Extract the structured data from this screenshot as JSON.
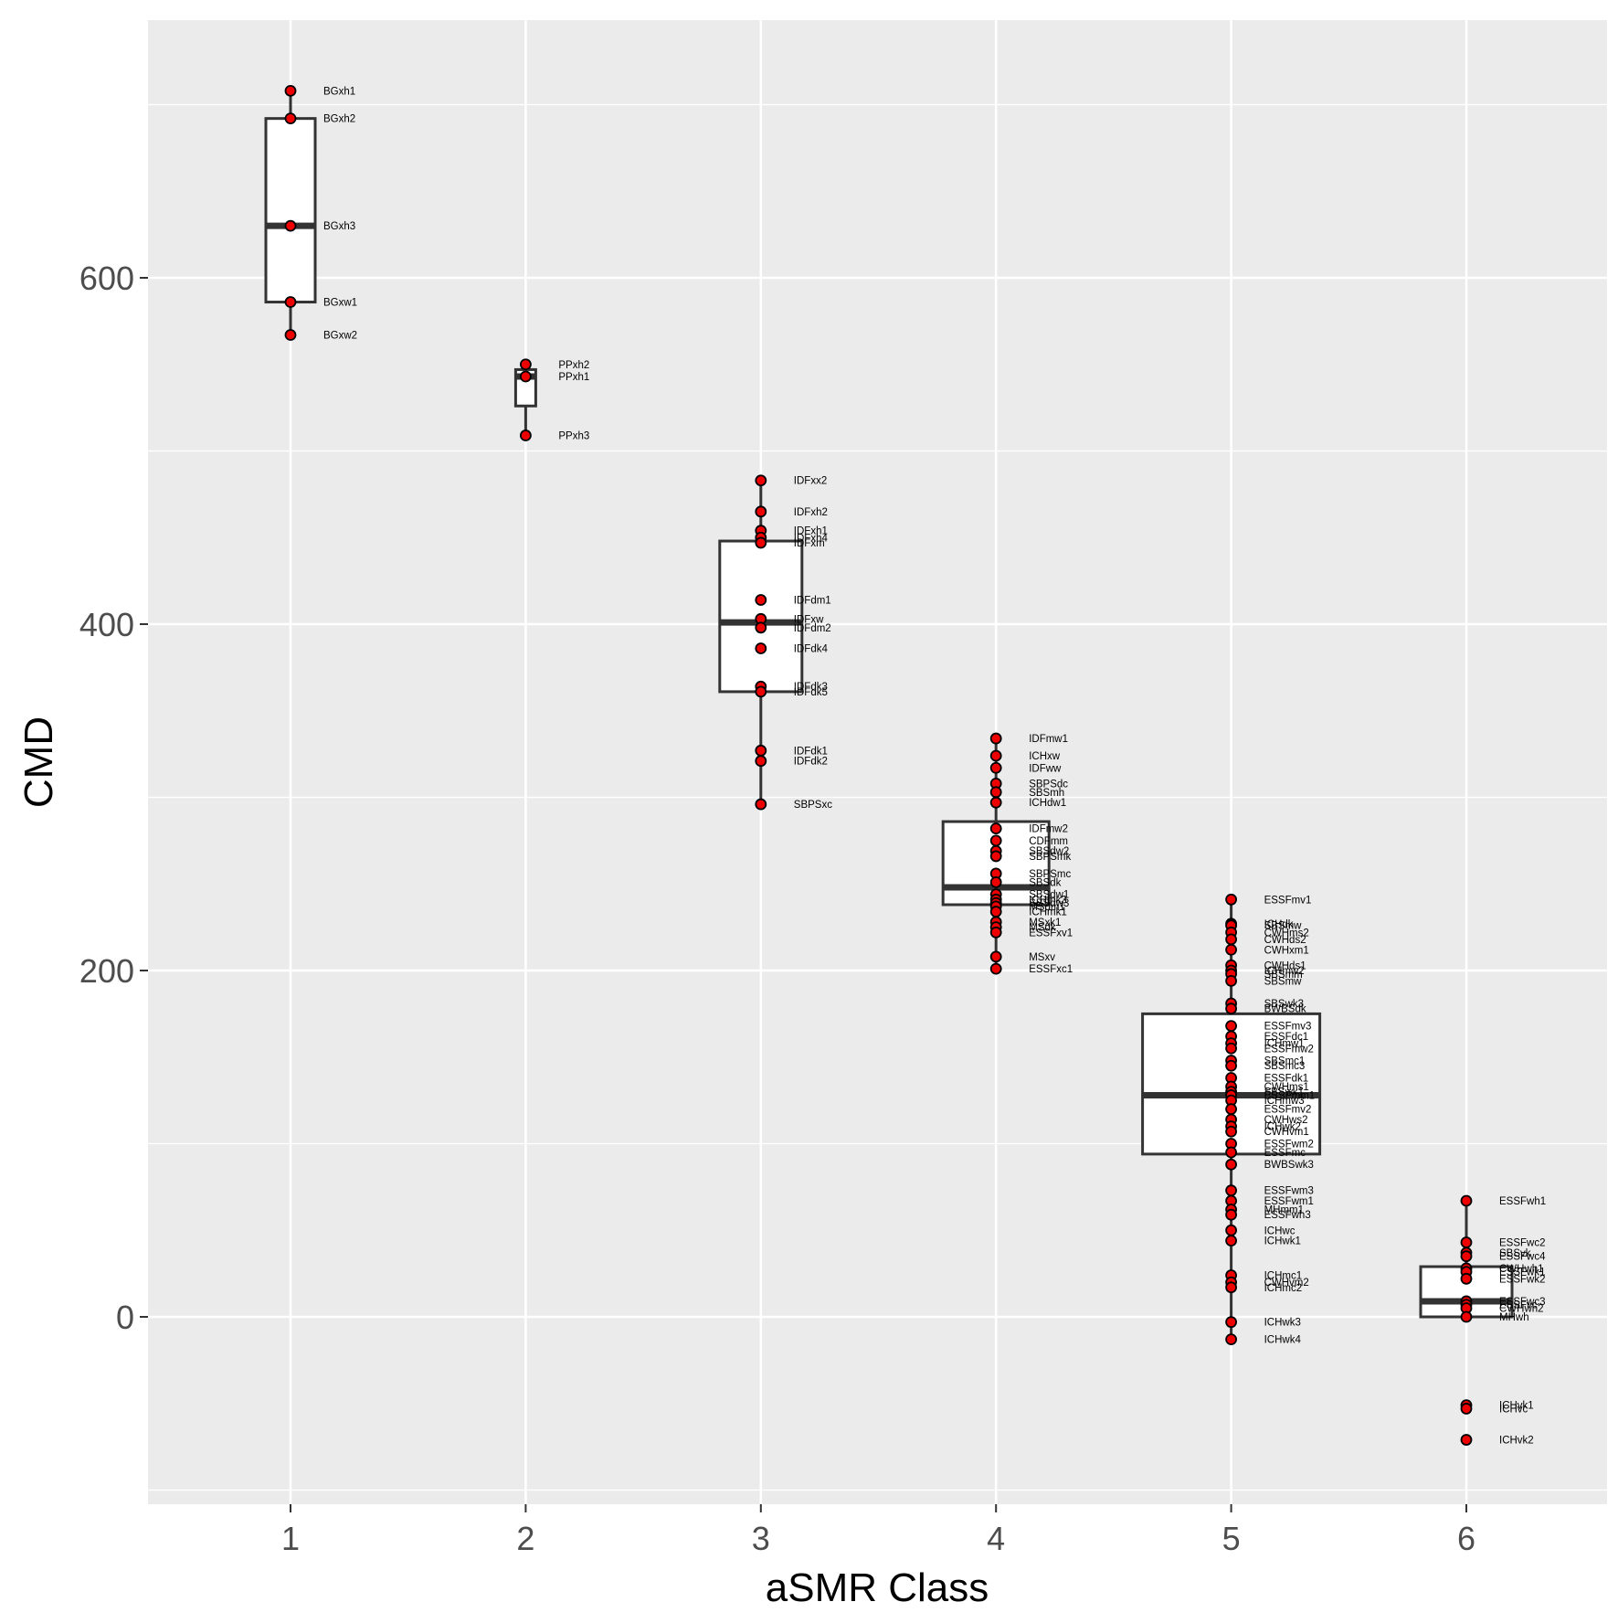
{
  "chart_data": {
    "type": "box",
    "xlabel": "aSMR Class",
    "ylabel": "CMD",
    "categories": [
      "1",
      "2",
      "3",
      "4",
      "5",
      "6"
    ],
    "yticks": [
      0,
      200,
      400,
      600
    ],
    "ylim": [
      -110,
      745
    ],
    "grid": true,
    "colors": {
      "panel_background": "#ebebeb",
      "grid": "#ffffff",
      "box_fill": "#ffffff",
      "box_line": "#333333",
      "point_fill": "#ee0000",
      "point_outline": "#000000"
    },
    "boxes": [
      {
        "class": "1",
        "whisker_low": 567,
        "q1": 586,
        "median": 630,
        "q3": 692,
        "whisker_high": 708
      },
      {
        "class": "2",
        "whisker_low": 509,
        "q1": 526,
        "median": 543,
        "q3": 547,
        "whisker_high": 550
      },
      {
        "class": "3",
        "whisker_low": 296,
        "q1": 361,
        "median": 401,
        "q3": 448,
        "whisker_high": 483
      },
      {
        "class": "4",
        "whisker_low": 201,
        "q1": 238,
        "median": 248,
        "q3": 286,
        "whisker_high": 334
      },
      {
        "class": "5",
        "whisker_low": -13,
        "q1": 94,
        "median": 128,
        "q3": 175,
        "whisker_high": 241
      },
      {
        "class": "6",
        "whisker_low": 0,
        "q1": 0,
        "median": 9,
        "q3": 29,
        "whisker_high": 67
      }
    ],
    "points": [
      {
        "class": "1",
        "label": "BGxh1",
        "value": 708
      },
      {
        "class": "1",
        "label": "BGxh2",
        "value": 692
      },
      {
        "class": "1",
        "label": "BGxh3",
        "value": 630
      },
      {
        "class": "1",
        "label": "BGxw1",
        "value": 586
      },
      {
        "class": "1",
        "label": "BGxw2",
        "value": 567
      },
      {
        "class": "2",
        "label": "PPxh2",
        "value": 550
      },
      {
        "class": "2",
        "label": "PPxh1",
        "value": 543
      },
      {
        "class": "2",
        "label": "PPxh3",
        "value": 509
      },
      {
        "class": "3",
        "label": "IDFxx2",
        "value": 483
      },
      {
        "class": "3",
        "label": "IDFxh2",
        "value": 465
      },
      {
        "class": "3",
        "label": "IDFxh1",
        "value": 454
      },
      {
        "class": "3",
        "label": "IDFxh4",
        "value": 450
      },
      {
        "class": "3",
        "label": "IDFxm",
        "value": 447
      },
      {
        "class": "3",
        "label": "IDFdm1",
        "value": 414
      },
      {
        "class": "3",
        "label": "IDFxw",
        "value": 403
      },
      {
        "class": "3",
        "label": "IDFdm2",
        "value": 398
      },
      {
        "class": "3",
        "label": "IDFdk4",
        "value": 386
      },
      {
        "class": "3",
        "label": "IDFdk3",
        "value": 364
      },
      {
        "class": "3",
        "label": "IDFdk5",
        "value": 361
      },
      {
        "class": "3",
        "label": "IDFdk1",
        "value": 327
      },
      {
        "class": "3",
        "label": "IDFdk2",
        "value": 321
      },
      {
        "class": "3",
        "label": "SBPSxc",
        "value": 296
      },
      {
        "class": "4",
        "label": "IDFmw1",
        "value": 334
      },
      {
        "class": "4",
        "label": "ICHxw",
        "value": 324
      },
      {
        "class": "4",
        "label": "IDFww",
        "value": 317
      },
      {
        "class": "4",
        "label": "SBPSdc",
        "value": 308
      },
      {
        "class": "4",
        "label": "SBSmh",
        "value": 303
      },
      {
        "class": "4",
        "label": "ICHdw1",
        "value": 297
      },
      {
        "class": "4",
        "label": "IDFmw2",
        "value": 282
      },
      {
        "class": "4",
        "label": "CDFmm",
        "value": 275
      },
      {
        "class": "4",
        "label": "SBSdw2",
        "value": 269
      },
      {
        "class": "4",
        "label": "SBPSmk",
        "value": 266
      },
      {
        "class": "4",
        "label": "SBPSmc",
        "value": 256
      },
      {
        "class": "4",
        "label": "SBSdk",
        "value": 251
      },
      {
        "class": "4",
        "label": "SBSdw1",
        "value": 244
      },
      {
        "class": "4",
        "label": "ICHmk3",
        "value": 241
      },
      {
        "class": "4",
        "label": "SBSdw3",
        "value": 239
      },
      {
        "class": "4",
        "label": "MSdm1",
        "value": 237
      },
      {
        "class": "4",
        "label": "ICHmk1",
        "value": 234
      },
      {
        "class": "4",
        "label": "MSxk1",
        "value": 228
      },
      {
        "class": "4",
        "label": "MSdk",
        "value": 225
      },
      {
        "class": "4",
        "label": "ESSFxv1",
        "value": 222
      },
      {
        "class": "4",
        "label": "MSxv",
        "value": 208
      },
      {
        "class": "4",
        "label": "ESSFxc1",
        "value": 201
      },
      {
        "class": "5",
        "label": "ESSFmv1",
        "value": 241
      },
      {
        "class": "5",
        "label": "ICHdk",
        "value": 227
      },
      {
        "class": "5",
        "label": "SBSmw",
        "value": 226
      },
      {
        "class": "5",
        "label": "CWHms2",
        "value": 222
      },
      {
        "class": "5",
        "label": "CWHds2",
        "value": 218
      },
      {
        "class": "5",
        "label": "CWHxm1",
        "value": 212
      },
      {
        "class": "5",
        "label": "CWHds1",
        "value": 203
      },
      {
        "class": "5",
        "label": "ICHmw2",
        "value": 200
      },
      {
        "class": "5",
        "label": "SBSmm",
        "value": 198
      },
      {
        "class": "5",
        "label": "SBSmw",
        "value": 194
      },
      {
        "class": "5",
        "label": "SBSwk3",
        "value": 181
      },
      {
        "class": "5",
        "label": "BWBSdk",
        "value": 178
      },
      {
        "class": "5",
        "label": "ESSFmv3",
        "value": 168
      },
      {
        "class": "5",
        "label": "ESSFdc1",
        "value": 162
      },
      {
        "class": "5",
        "label": "ICHmw1",
        "value": 158
      },
      {
        "class": "5",
        "label": "ESSFmw2",
        "value": 155
      },
      {
        "class": "5",
        "label": "SBSmc1",
        "value": 148
      },
      {
        "class": "5",
        "label": "SBSmc3",
        "value": 145
      },
      {
        "class": "5",
        "label": "ESSFdk1",
        "value": 138
      },
      {
        "class": "5",
        "label": "CWHms1",
        "value": 133
      },
      {
        "class": "5",
        "label": "SBSwk1",
        "value": 130
      },
      {
        "class": "5",
        "label": "ESSFmm1",
        "value": 128
      },
      {
        "class": "5",
        "label": "ICHmw3",
        "value": 125
      },
      {
        "class": "5",
        "label": "ESSFmv2",
        "value": 120
      },
      {
        "class": "5",
        "label": "CWHws2",
        "value": 114
      },
      {
        "class": "5",
        "label": "ICHwk2",
        "value": 110
      },
      {
        "class": "5",
        "label": "CWHvm1",
        "value": 107
      },
      {
        "class": "5",
        "label": "ESSFwm2",
        "value": 100
      },
      {
        "class": "5",
        "label": "ESSFmc",
        "value": 95
      },
      {
        "class": "5",
        "label": "BWBSwk3",
        "value": 88
      },
      {
        "class": "5",
        "label": "ESSFwm3",
        "value": 73
      },
      {
        "class": "5",
        "label": "ESSFwm1",
        "value": 67
      },
      {
        "class": "5",
        "label": "MHmm1",
        "value": 62
      },
      {
        "class": "5",
        "label": "ESSFwh3",
        "value": 59
      },
      {
        "class": "5",
        "label": "ICHwc",
        "value": 50
      },
      {
        "class": "5",
        "label": "ICHwk1",
        "value": 44
      },
      {
        "class": "5",
        "label": "ICHmc1",
        "value": 24
      },
      {
        "class": "5",
        "label": "CWHvm2",
        "value": 20
      },
      {
        "class": "5",
        "label": "ICHmc2",
        "value": 17
      },
      {
        "class": "5",
        "label": "ICHwk3",
        "value": -3
      },
      {
        "class": "5",
        "label": "ICHwk4",
        "value": -13
      },
      {
        "class": "6",
        "label": "ESSFwh1",
        "value": 67
      },
      {
        "class": "6",
        "label": "ESSFwc2",
        "value": 43
      },
      {
        "class": "6",
        "label": "SBSvk",
        "value": 37
      },
      {
        "class": "6",
        "label": "ESSFwc4",
        "value": 35
      },
      {
        "class": "6",
        "label": "CWHwh1",
        "value": 28
      },
      {
        "class": "6",
        "label": "ESSFwk1",
        "value": 26
      },
      {
        "class": "6",
        "label": "ESSFwk2",
        "value": 22
      },
      {
        "class": "6",
        "label": "ESSFwc3",
        "value": 9
      },
      {
        "class": "6",
        "label": "ESSFvc",
        "value": 7
      },
      {
        "class": "6",
        "label": "CWHwh2",
        "value": 5
      },
      {
        "class": "6",
        "label": "MHwh",
        "value": 0
      },
      {
        "class": "6",
        "label": "ICHvk1",
        "value": -51
      },
      {
        "class": "6",
        "label": "ICHvc",
        "value": -53
      },
      {
        "class": "6",
        "label": "ICHvk2",
        "value": -71
      }
    ]
  }
}
